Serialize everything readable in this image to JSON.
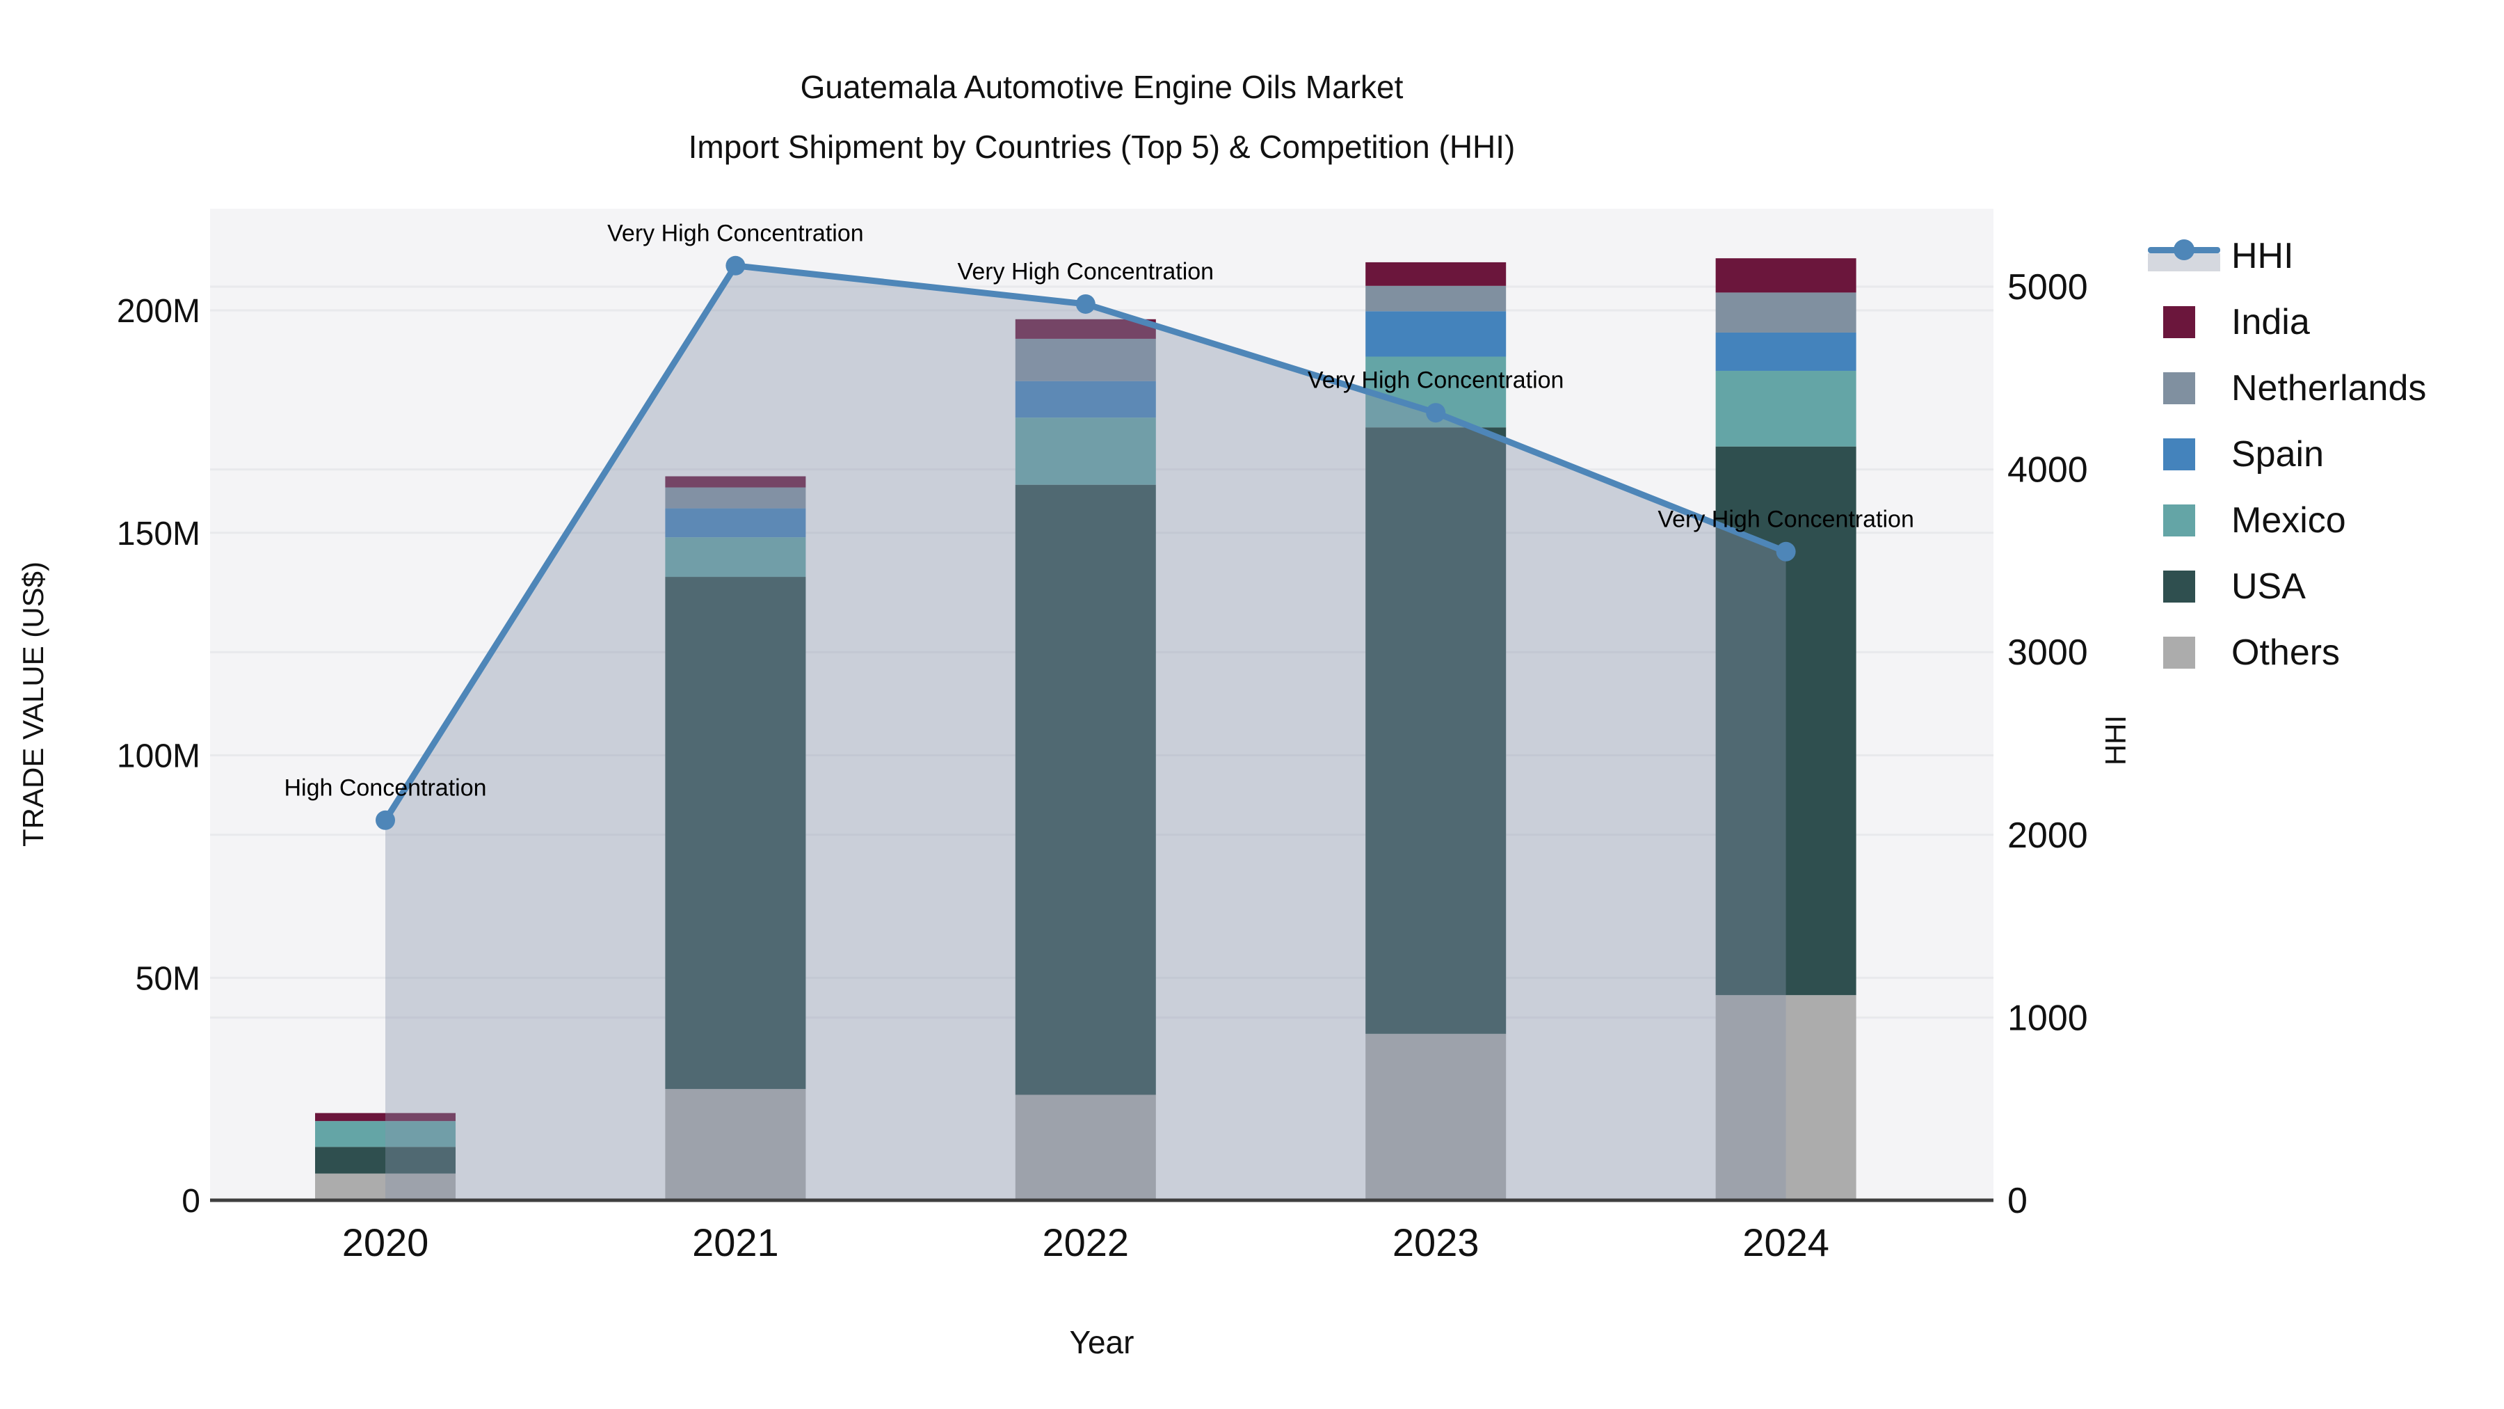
{
  "title": {
    "line1": "Guatemala Automotive Engine Oils Market",
    "line2": "Import Shipment by Countries (Top 5) & Competition (HHI)"
  },
  "axes": {
    "y_left": {
      "title": "TRADE VALUE (US$)",
      "tick_labels": [
        "0",
        "50M",
        "100M",
        "150M",
        "200M"
      ],
      "tick_values_millions": [
        0,
        50,
        100,
        150,
        200
      ]
    },
    "y_right": {
      "title": "HHI",
      "tick_labels": [
        "0",
        "1000",
        "2000",
        "3000",
        "4000",
        "5000"
      ],
      "tick_values": [
        0,
        1000,
        2000,
        3000,
        4000,
        5000
      ]
    },
    "x": {
      "title": "Year",
      "categories": [
        "2020",
        "2021",
        "2022",
        "2023",
        "2024"
      ]
    }
  },
  "chart_data": {
    "type": "stacked-bar+line",
    "categories": [
      "2020",
      "2021",
      "2022",
      "2023",
      "2024"
    ],
    "unit": "million US$",
    "series": [
      {
        "name": "Others",
        "color": "#ACACAC",
        "values": [
          6.0,
          25.0,
          23.7,
          37.4,
          46.1
        ]
      },
      {
        "name": "USA",
        "color": "#2F4F4F",
        "values": [
          6.0,
          115.1,
          137.1,
          136.3,
          123.3
        ]
      },
      {
        "name": "Mexico",
        "color": "#64A5A6",
        "values": [
          5.8,
          8.9,
          15.1,
          15.9,
          17.0
        ]
      },
      {
        "name": "Spain",
        "color": "#4483BC",
        "values": [
          0,
          6.5,
          8.2,
          10.2,
          8.6
        ]
      },
      {
        "name": "Netherlands",
        "color": "#8090A0",
        "values": [
          0,
          4.7,
          9.5,
          5.7,
          9.0
        ]
      },
      {
        "name": "India",
        "color": "#6B163C",
        "values": [
          1.8,
          2.5,
          4.4,
          5.3,
          7.7
        ]
      }
    ],
    "totals_millions": [
      19.6,
      162.7,
      198.0,
      210.8,
      211.7
    ],
    "line_series": {
      "name": "HHI",
      "axis": "right",
      "color": "#4E86B8",
      "fill_color": "rgba(133,148,172,0.38)",
      "values": [
        2080,
        5115,
        4905,
        4310,
        3550
      ]
    },
    "annotations": [
      {
        "category": "2020",
        "text": "High Concentration"
      },
      {
        "category": "2021",
        "text": "Very High Concentration"
      },
      {
        "category": "2022",
        "text": "Very High Concentration"
      },
      {
        "category": "2023",
        "text": "Very High Concentration"
      },
      {
        "category": "2024",
        "text": "Very High Concentration"
      }
    ],
    "ylim_left_millions": [
      0,
      222
    ],
    "ylim_right": [
      0,
      5425
    ],
    "grid": true,
    "legend_position": "right"
  },
  "legend": {
    "items": [
      {
        "label": "HHI",
        "type": "line",
        "color": "#4E86B8"
      },
      {
        "label": "India",
        "type": "square",
        "color": "#6B163C"
      },
      {
        "label": "Netherlands",
        "type": "square",
        "color": "#8090A0"
      },
      {
        "label": "Spain",
        "type": "square",
        "color": "#4483BC"
      },
      {
        "label": "Mexico",
        "type": "square",
        "color": "#64A5A6"
      },
      {
        "label": "USA",
        "type": "square",
        "color": "#2F4F4F"
      },
      {
        "label": "Others",
        "type": "square",
        "color": "#ACACAC"
      }
    ]
  },
  "style_colors": {
    "plot_background": "#F4F4F6",
    "gridline": "#E8E9EC",
    "axis_line": "#3F3F3F",
    "text": "#111111"
  }
}
